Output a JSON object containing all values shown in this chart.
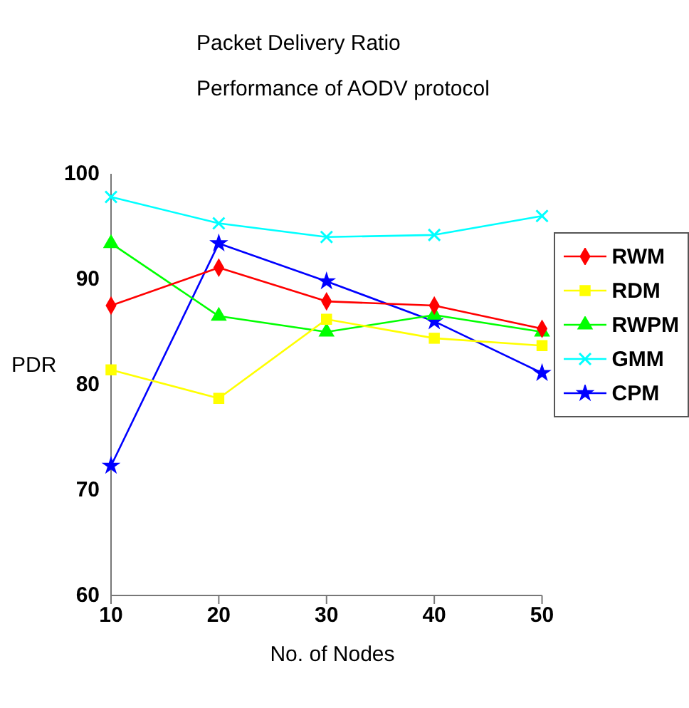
{
  "chart_data": {
    "type": "line",
    "title": "Packet Delivery Ratio",
    "subtitle": "Performance of AODV protocol",
    "xlabel": "No. of  Nodes",
    "ylabel": "PDR",
    "categories": [
      "10",
      "20",
      "30",
      "40",
      "50"
    ],
    "ylim": [
      60,
      100
    ],
    "yticks": [
      60,
      70,
      80,
      90,
      100
    ],
    "grid": false,
    "legend": "right",
    "series": [
      {
        "name": "RWM",
        "color": "#ff0000",
        "marker": "diamond",
        "values": [
          87.5,
          91.1,
          87.9,
          87.5,
          85.3
        ]
      },
      {
        "name": "RDM",
        "color": "#ffff00",
        "marker": "square",
        "values": [
          81.4,
          78.7,
          86.2,
          84.4,
          83.7
        ]
      },
      {
        "name": "RWPM",
        "color": "#00ff00",
        "marker": "triangle",
        "values": [
          93.4,
          86.5,
          85.0,
          86.6,
          85.0
        ]
      },
      {
        "name": "GMM",
        "color": "#00ffff",
        "marker": "cross",
        "values": [
          97.8,
          95.3,
          94.0,
          94.2,
          96.0
        ]
      },
      {
        "name": "CPM",
        "color": "#0000ff",
        "marker": "star",
        "values": [
          72.3,
          93.4,
          89.8,
          86.0,
          81.1
        ]
      }
    ]
  }
}
